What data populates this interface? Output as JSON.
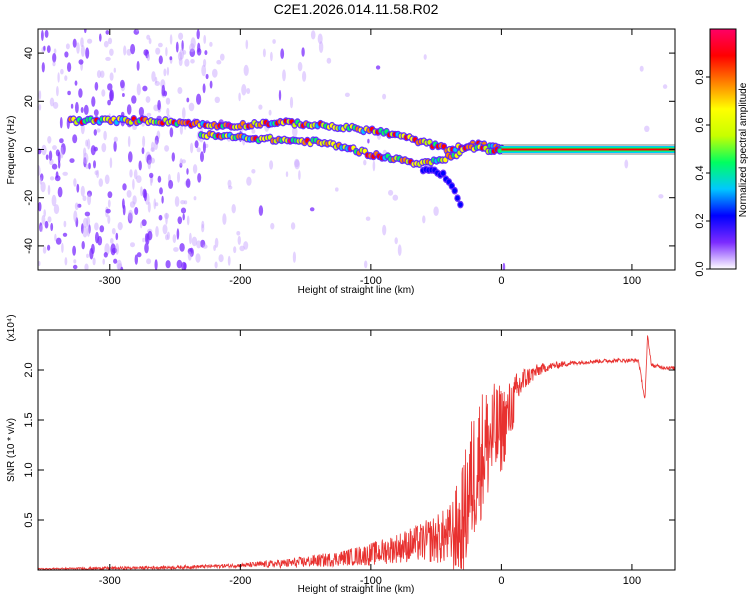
{
  "title": "C2E1.2026.014.11.58.R02",
  "chart_data": [
    {
      "type": "heatmap",
      "name": "spectrogram",
      "xlabel": "Height of straight line (km)",
      "ylabel": "Frequency (Hz)",
      "xlim": [
        -355,
        133
      ],
      "ylim": [
        -50,
        50
      ],
      "xticks": [
        -300,
        -200,
        -100,
        0,
        100
      ],
      "xtick_labels": [
        "-300",
        "-200",
        "-100",
        "0",
        "100"
      ],
      "yticks": [
        -40,
        -20,
        0,
        20,
        40
      ],
      "ytick_labels": [
        "-40",
        "-20",
        "0",
        "20",
        "40"
      ],
      "colorbar": {
        "label": "Normalized spectral amplitude",
        "range": [
          0.0,
          1.0
        ],
        "ticks": [
          0.0,
          0.2,
          0.4,
          0.6,
          0.8
        ],
        "tick_labels": [
          "0.0",
          "0.2",
          "0.4",
          "0.6",
          "0.8"
        ],
        "colormap": [
          "#ffffff",
          "#7b2bff",
          "#0000ff",
          "#00c8ff",
          "#00ff60",
          "#c8ff00",
          "#ffff00",
          "#ff8000",
          "#ff0000",
          "#ff0066"
        ]
      },
      "ridges": [
        {
          "name": "upper-branch",
          "x": [
            -330,
            -270,
            -240,
            -225,
            -200,
            -180,
            -160,
            -140,
            -120,
            -100,
            -80,
            -60,
            -40,
            -20,
            0
          ],
          "y": [
            12,
            12,
            11,
            10,
            10,
            11,
            11,
            10,
            9,
            8,
            6,
            3,
            0,
            2,
            1
          ]
        },
        {
          "name": "lower-branch",
          "x": [
            -230,
            -200,
            -170,
            -140,
            -120,
            -100,
            -80,
            -60,
            -45,
            -35,
            -25,
            -10,
            0
          ],
          "y": [
            6,
            5,
            4,
            3,
            1,
            -2,
            -4,
            -6,
            -4,
            -2,
            1,
            0,
            0
          ]
        },
        {
          "name": "tail",
          "x": [
            -60,
            -45,
            -35,
            -30
          ],
          "y": [
            -8,
            -10,
            -18,
            -24
          ]
        },
        {
          "name": "carrier",
          "x": [
            0,
            133
          ],
          "y": [
            0,
            0
          ]
        }
      ]
    },
    {
      "type": "line",
      "name": "snr",
      "xlabel": "Height of straight line (km)",
      "ylabel": "SNR (10 * v/v)",
      "scale_label": "(x10⁴)",
      "xlim": [
        -355,
        133
      ],
      "ylim": [
        0,
        2.4
      ],
      "xticks": [
        -300,
        -200,
        -100,
        0,
        100
      ],
      "xtick_labels": [
        "-300",
        "-200",
        "-100",
        "0",
        "100"
      ],
      "yticks": [
        0.5,
        1.0,
        1.5,
        2.0
      ],
      "ytick_labels": [
        "0.5",
        "1.0",
        "1.5",
        "2.0"
      ],
      "color": "#e8312f",
      "envelope": {
        "x": [
          -355,
          -250,
          -200,
          -160,
          -130,
          -100,
          -80,
          -60,
          -40,
          -30,
          -25,
          -20,
          -15,
          -10,
          -5,
          0,
          5,
          10,
          15,
          20,
          30,
          40,
          50,
          70,
          90,
          105,
          110,
          112,
          115,
          125,
          133
        ],
        "y": [
          0.01,
          0.03,
          0.05,
          0.08,
          0.12,
          0.18,
          0.25,
          0.32,
          0.4,
          0.55,
          0.9,
          1.15,
          1.3,
          1.4,
          1.45,
          1.5,
          1.6,
          1.75,
          1.9,
          1.95,
          2.02,
          2.05,
          2.07,
          2.09,
          2.1,
          2.1,
          1.7,
          2.35,
          2.05,
          2.03,
          2.02
        ]
      },
      "noise_amplitude": {
        "x": [
          -355,
          -200,
          -120,
          -80,
          -60,
          -40,
          -30,
          -20,
          -10,
          0,
          10,
          20,
          35,
          60,
          133
        ],
        "y": [
          0.01,
          0.02,
          0.08,
          0.15,
          0.2,
          0.3,
          0.6,
          0.7,
          0.6,
          0.45,
          0.25,
          0.1,
          0.04,
          0.02,
          0.02
        ]
      }
    }
  ]
}
